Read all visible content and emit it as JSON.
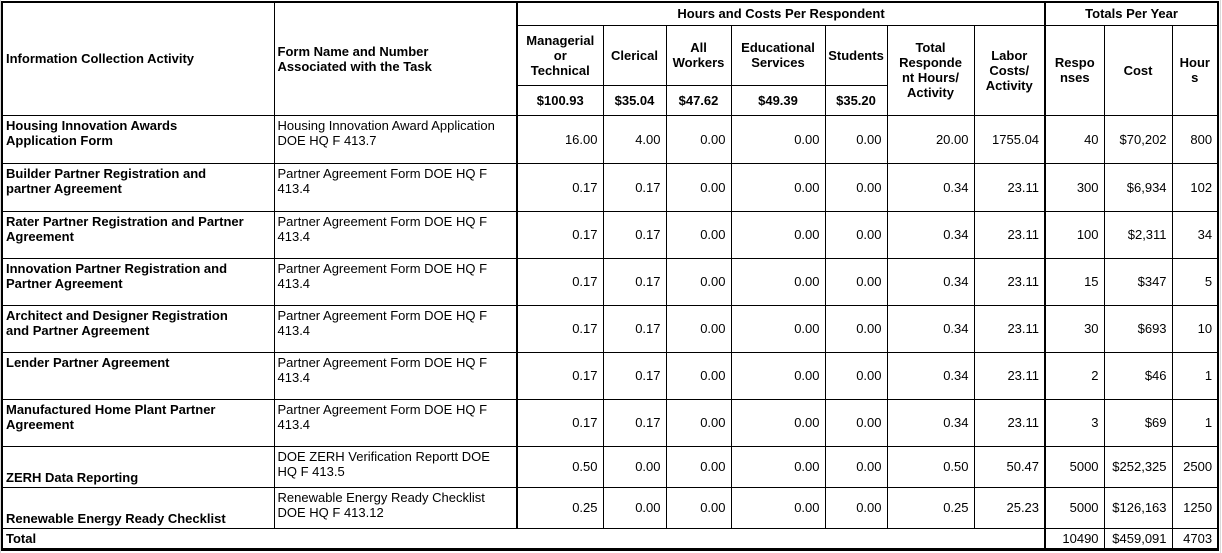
{
  "table": {
    "header": {
      "activity_col": "Information Collection Activity",
      "form_col": "Form Name and Number\nAssociated with the Task",
      "group_hours_costs": "Hours and Costs Per Respondent",
      "group_totals": "Totals Per Year",
      "worker_categories": [
        {
          "label": "Managerial\nor\nTechnical",
          "rate": "$100.93"
        },
        {
          "label": "Clerical",
          "rate": "$35.04"
        },
        {
          "label": "All\nWorkers",
          "rate": "$47.62"
        },
        {
          "label": "Educational\nServices",
          "rate": "$49.39"
        },
        {
          "label": "Students",
          "rate": "$35.20"
        }
      ],
      "total_respondent_hours_col": "Total\nResponde\nnt Hours/\nActivity",
      "labor_costs_col": "Labor\nCosts/\nActivity",
      "responses_col": "Respo\nnses",
      "cost_col": "Cost",
      "hours_col": "Hour\ns"
    },
    "rows": [
      {
        "activity": "Housing Innovation Awards\nApplication Form",
        "form": "Housing Innovation Award Application\nDOE HQ F 413.7",
        "managerial": "16.00",
        "clerical": "4.00",
        "all_workers": "0.00",
        "educational": "0.00",
        "students": "0.00",
        "total_hours": "20.00",
        "labor_costs": "1755.04",
        "responses": "40",
        "cost": "$70,202",
        "hours": "800"
      },
      {
        "activity": "Builder Partner Registration and\npartner Agreement",
        "form": "Partner Agreement Form  DOE HQ F\n413.4",
        "managerial": "0.17",
        "clerical": "0.17",
        "all_workers": "0.00",
        "educational": "0.00",
        "students": "0.00",
        "total_hours": "0.34",
        "labor_costs": "23.11",
        "responses": "300",
        "cost": "$6,934",
        "hours": "102"
      },
      {
        "activity": "Rater Partner Registration and Partner\nAgreement",
        "form": "Partner Agreement Form  DOE HQ F\n413.4",
        "managerial": "0.17",
        "clerical": "0.17",
        "all_workers": "0.00",
        "educational": "0.00",
        "students": "0.00",
        "total_hours": "0.34",
        "labor_costs": "23.11",
        "responses": "100",
        "cost": "$2,311",
        "hours": "34"
      },
      {
        "activity": "Innovation Partner Registration and\nPartner Agreement",
        "form": "Partner Agreement Form  DOE HQ F\n413.4",
        "managerial": "0.17",
        "clerical": "0.17",
        "all_workers": "0.00",
        "educational": "0.00",
        "students": "0.00",
        "total_hours": "0.34",
        "labor_costs": "23.11",
        "responses": "15",
        "cost": "$347",
        "hours": "5"
      },
      {
        "activity": "Architect and Designer Registration\nand Partner Agreement",
        "form": "Partner Agreement Form  DOE HQ F\n413.4",
        "managerial": "0.17",
        "clerical": "0.17",
        "all_workers": "0.00",
        "educational": "0.00",
        "students": "0.00",
        "total_hours": "0.34",
        "labor_costs": "23.11",
        "responses": "30",
        "cost": "$693",
        "hours": "10"
      },
      {
        "activity": "Lender Partner Agreement",
        "form": "Partner Agreement Form  DOE HQ F\n413.4",
        "managerial": "0.17",
        "clerical": "0.17",
        "all_workers": "0.00",
        "educational": "0.00",
        "students": "0.00",
        "total_hours": "0.34",
        "labor_costs": "23.11",
        "responses": "2",
        "cost": "$46",
        "hours": "1"
      },
      {
        "activity": "Manufactured Home Plant Partner\nAgreement",
        "form": "Partner Agreement Form  DOE HQ F\n413.4",
        "managerial": "0.17",
        "clerical": "0.17",
        "all_workers": "0.00",
        "educational": "0.00",
        "students": "0.00",
        "total_hours": "0.34",
        "labor_costs": "23.11",
        "responses": "3",
        "cost": "$69",
        "hours": "1"
      },
      {
        "activity": "ZERH Data Reporting",
        "form": "DOE ZERH Verification Reportt  DOE\nHQ F 413.5",
        "managerial": "0.50",
        "clerical": "0.00",
        "all_workers": "0.00",
        "educational": "0.00",
        "students": "0.00",
        "total_hours": "0.50",
        "labor_costs": "50.47",
        "responses": "5000",
        "cost": "$252,325",
        "hours": "2500"
      },
      {
        "activity": "Renewable Energy Ready Checklist",
        "form": "Renewable Energy Ready Checklist\nDOE HQ F 413.12",
        "managerial": "0.25",
        "clerical": "0.00",
        "all_workers": "0.00",
        "educational": "0.00",
        "students": "0.00",
        "total_hours": "0.25",
        "labor_costs": "25.23",
        "responses": "5000",
        "cost": "$126,163",
        "hours": "1250"
      }
    ],
    "total_row": {
      "label": "Total",
      "responses": "10490",
      "cost": "$459,091",
      "hours": "4703"
    }
  }
}
